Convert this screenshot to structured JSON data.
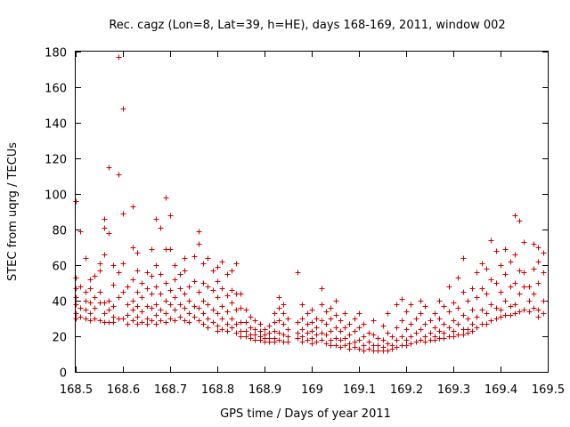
{
  "chart_data": {
    "type": "scatter",
    "title": "Rec. cagz (Lon=8, Lat=39, h=HE), days 168-169, 2011, window 002",
    "xlabel": "GPS time / Days of year 2011",
    "ylabel": "STEC from uqrg / TECUs",
    "xlim": [
      168.5,
      169.5
    ],
    "ylim": [
      0,
      180
    ],
    "xticks": [
      "168.5",
      "168.6",
      "168.7",
      "168.8",
      "168.9",
      "169",
      "169.1",
      "169.2",
      "169.3",
      "169.4",
      "169.5"
    ],
    "yticks": [
      "0",
      "20",
      "40",
      "60",
      "80",
      "100",
      "120",
      "140",
      "160",
      "180"
    ],
    "grid": false,
    "legend": "none",
    "marker": "+",
    "color": "#cc0000",
    "points": [
      [
        168.5,
        96
      ],
      [
        168.5,
        53
      ],
      [
        168.5,
        47
      ],
      [
        168.5,
        42
      ],
      [
        168.5,
        38
      ],
      [
        168.5,
        33
      ],
      [
        168.5,
        30
      ],
      [
        168.51,
        79
      ],
      [
        168.51,
        48
      ],
      [
        168.51,
        36
      ],
      [
        168.51,
        31
      ],
      [
        168.52,
        64
      ],
      [
        168.52,
        45
      ],
      [
        168.52,
        40
      ],
      [
        168.52,
        35
      ],
      [
        168.52,
        30
      ],
      [
        168.53,
        52
      ],
      [
        168.53,
        47
      ],
      [
        168.53,
        39
      ],
      [
        168.53,
        33
      ],
      [
        168.53,
        29
      ],
      [
        168.54,
        54
      ],
      [
        168.54,
        42
      ],
      [
        168.54,
        36
      ],
      [
        168.54,
        30
      ],
      [
        168.55,
        61
      ],
      [
        168.55,
        57
      ],
      [
        168.55,
        45
      ],
      [
        168.55,
        39
      ],
      [
        168.55,
        29
      ],
      [
        168.56,
        86
      ],
      [
        168.56,
        81
      ],
      [
        168.56,
        66
      ],
      [
        168.56,
        39
      ],
      [
        168.56,
        33
      ],
      [
        168.56,
        28
      ],
      [
        168.57,
        115
      ],
      [
        168.57,
        78
      ],
      [
        168.57,
        40
      ],
      [
        168.57,
        35
      ],
      [
        168.57,
        28
      ],
      [
        168.58,
        60
      ],
      [
        168.58,
        49
      ],
      [
        168.58,
        37
      ],
      [
        168.58,
        31
      ],
      [
        168.58,
        28
      ],
      [
        168.59,
        177
      ],
      [
        168.59,
        111
      ],
      [
        168.59,
        56
      ],
      [
        168.59,
        42
      ],
      [
        168.59,
        30
      ],
      [
        168.6,
        148
      ],
      [
        168.6,
        89
      ],
      [
        168.6,
        61
      ],
      [
        168.6,
        45
      ],
      [
        168.6,
        30
      ],
      [
        168.61,
        48
      ],
      [
        168.61,
        38
      ],
      [
        168.61,
        32
      ],
      [
        168.61,
        27
      ],
      [
        168.62,
        93
      ],
      [
        168.62,
        70
      ],
      [
        168.62,
        52
      ],
      [
        168.62,
        40
      ],
      [
        168.62,
        35
      ],
      [
        168.62,
        29
      ],
      [
        168.63,
        67
      ],
      [
        168.63,
        57
      ],
      [
        168.63,
        45
      ],
      [
        168.63,
        37
      ],
      [
        168.63,
        31
      ],
      [
        168.63,
        27
      ],
      [
        168.64,
        50
      ],
      [
        168.64,
        42
      ],
      [
        168.64,
        34
      ],
      [
        168.64,
        28
      ],
      [
        168.65,
        56
      ],
      [
        168.65,
        47
      ],
      [
        168.65,
        37
      ],
      [
        168.65,
        30
      ],
      [
        168.65,
        27
      ],
      [
        168.66,
        69
      ],
      [
        168.66,
        54
      ],
      [
        168.66,
        44
      ],
      [
        168.66,
        36
      ],
      [
        168.66,
        29
      ],
      [
        168.67,
        86
      ],
      [
        168.67,
        60
      ],
      [
        168.67,
        48
      ],
      [
        168.67,
        38
      ],
      [
        168.67,
        32
      ],
      [
        168.67,
        27
      ],
      [
        168.68,
        81
      ],
      [
        168.68,
        55
      ],
      [
        168.68,
        44
      ],
      [
        168.68,
        35
      ],
      [
        168.68,
        29
      ],
      [
        168.69,
        98
      ],
      [
        168.69,
        69
      ],
      [
        168.69,
        50
      ],
      [
        168.69,
        40
      ],
      [
        168.69,
        33
      ],
      [
        168.69,
        28
      ],
      [
        168.7,
        88
      ],
      [
        168.7,
        69
      ],
      [
        168.7,
        46
      ],
      [
        168.7,
        38
      ],
      [
        168.7,
        30
      ],
      [
        168.71,
        60
      ],
      [
        168.71,
        52
      ],
      [
        168.71,
        42
      ],
      [
        168.71,
        35
      ],
      [
        168.71,
        29
      ],
      [
        168.72,
        55
      ],
      [
        168.72,
        47
      ],
      [
        168.72,
        38
      ],
      [
        168.72,
        31
      ],
      [
        168.73,
        64
      ],
      [
        168.73,
        57
      ],
      [
        168.73,
        44
      ],
      [
        168.73,
        36
      ],
      [
        168.73,
        29
      ],
      [
        168.74,
        48
      ],
      [
        168.74,
        40
      ],
      [
        168.74,
        33
      ],
      [
        168.74,
        28
      ],
      [
        168.75,
        65
      ],
      [
        168.75,
        51
      ],
      [
        168.75,
        37
      ],
      [
        168.75,
        31
      ],
      [
        168.76,
        79
      ],
      [
        168.76,
        72
      ],
      [
        168.76,
        45
      ],
      [
        168.76,
        36
      ],
      [
        168.76,
        29
      ],
      [
        168.77,
        61
      ],
      [
        168.77,
        50
      ],
      [
        168.77,
        40
      ],
      [
        168.77,
        33
      ],
      [
        168.77,
        27
      ],
      [
        168.78,
        64
      ],
      [
        168.78,
        48
      ],
      [
        168.78,
        38
      ],
      [
        168.78,
        30
      ],
      [
        168.78,
        25
      ],
      [
        168.79,
        57
      ],
      [
        168.79,
        46
      ],
      [
        168.79,
        35
      ],
      [
        168.79,
        28
      ],
      [
        168.8,
        59
      ],
      [
        168.8,
        51
      ],
      [
        168.8,
        42
      ],
      [
        168.8,
        33
      ],
      [
        168.8,
        26
      ],
      [
        168.8,
        23
      ],
      [
        168.81,
        62
      ],
      [
        168.81,
        47
      ],
      [
        168.81,
        37
      ],
      [
        168.81,
        30
      ],
      [
        168.81,
        24
      ],
      [
        168.82,
        55
      ],
      [
        168.82,
        43
      ],
      [
        168.82,
        34
      ],
      [
        168.82,
        27
      ],
      [
        168.82,
        23
      ],
      [
        168.83,
        57
      ],
      [
        168.83,
        46
      ],
      [
        168.83,
        39
      ],
      [
        168.83,
        30
      ],
      [
        168.83,
        25
      ],
      [
        168.84,
        61
      ],
      [
        168.84,
        44
      ],
      [
        168.84,
        35
      ],
      [
        168.84,
        27
      ],
      [
        168.84,
        22
      ],
      [
        168.85,
        44
      ],
      [
        168.85,
        36
      ],
      [
        168.85,
        28
      ],
      [
        168.85,
        23
      ],
      [
        168.85,
        20
      ],
      [
        168.86,
        35
      ],
      [
        168.86,
        28
      ],
      [
        168.86,
        23
      ],
      [
        168.86,
        20
      ],
      [
        168.87,
        31
      ],
      [
        168.87,
        25
      ],
      [
        168.87,
        21
      ],
      [
        168.87,
        19
      ],
      [
        168.88,
        29
      ],
      [
        168.88,
        24
      ],
      [
        168.88,
        21
      ],
      [
        168.88,
        18
      ],
      [
        168.89,
        27
      ],
      [
        168.89,
        23
      ],
      [
        168.89,
        20
      ],
      [
        168.89,
        18
      ],
      [
        168.9,
        24
      ],
      [
        168.9,
        21
      ],
      [
        168.9,
        19
      ],
      [
        168.9,
        17
      ],
      [
        168.91,
        26
      ],
      [
        168.91,
        22
      ],
      [
        168.91,
        19
      ],
      [
        168.91,
        17
      ],
      [
        168.92,
        33
      ],
      [
        168.92,
        28
      ],
      [
        168.92,
        23
      ],
      [
        168.92,
        19
      ],
      [
        168.92,
        17
      ],
      [
        168.93,
        42
      ],
      [
        168.93,
        36
      ],
      [
        168.93,
        29
      ],
      [
        168.93,
        22
      ],
      [
        168.93,
        18
      ],
      [
        168.94,
        38
      ],
      [
        168.94,
        33
      ],
      [
        168.94,
        27
      ],
      [
        168.94,
        21
      ],
      [
        168.94,
        17
      ],
      [
        168.95,
        30
      ],
      [
        168.95,
        24
      ],
      [
        168.95,
        20
      ],
      [
        168.95,
        17
      ],
      [
        168.97,
        56
      ],
      [
        168.97,
        28
      ],
      [
        168.97,
        22
      ],
      [
        168.97,
        19
      ],
      [
        168.98,
        38
      ],
      [
        168.98,
        30
      ],
      [
        168.98,
        24
      ],
      [
        168.98,
        20
      ],
      [
        168.98,
        17
      ],
      [
        168.99,
        33
      ],
      [
        168.99,
        27
      ],
      [
        168.99,
        22
      ],
      [
        168.99,
        18
      ],
      [
        169.0,
        35
      ],
      [
        169.0,
        28
      ],
      [
        169.0,
        23
      ],
      [
        169.0,
        19
      ],
      [
        169.0,
        16
      ],
      [
        169.01,
        30
      ],
      [
        169.01,
        25
      ],
      [
        169.01,
        21
      ],
      [
        169.01,
        17
      ],
      [
        169.02,
        47
      ],
      [
        169.02,
        38
      ],
      [
        169.02,
        29
      ],
      [
        169.02,
        22
      ],
      [
        169.02,
        18
      ],
      [
        169.03,
        34
      ],
      [
        169.03,
        27
      ],
      [
        169.03,
        21
      ],
      [
        169.03,
        16
      ],
      [
        169.04,
        36
      ],
      [
        169.04,
        30
      ],
      [
        169.04,
        23
      ],
      [
        169.04,
        18
      ],
      [
        169.04,
        15
      ],
      [
        169.05,
        40
      ],
      [
        169.05,
        32
      ],
      [
        169.05,
        25
      ],
      [
        169.05,
        19
      ],
      [
        169.05,
        15
      ],
      [
        169.06,
        29
      ],
      [
        169.06,
        23
      ],
      [
        169.06,
        18
      ],
      [
        169.06,
        14
      ],
      [
        169.07,
        33
      ],
      [
        169.07,
        25
      ],
      [
        169.07,
        19
      ],
      [
        169.07,
        15
      ],
      [
        169.08,
        27
      ],
      [
        169.08,
        21
      ],
      [
        169.08,
        16
      ],
      [
        169.08,
        13
      ],
      [
        169.09,
        30
      ],
      [
        169.09,
        23
      ],
      [
        169.09,
        17
      ],
      [
        169.09,
        14
      ],
      [
        169.1,
        33
      ],
      [
        169.1,
        25
      ],
      [
        169.1,
        18
      ],
      [
        169.1,
        13
      ],
      [
        169.11,
        27
      ],
      [
        169.11,
        20
      ],
      [
        169.11,
        15
      ],
      [
        169.11,
        12
      ],
      [
        169.12,
        22
      ],
      [
        169.12,
        17
      ],
      [
        169.12,
        13
      ],
      [
        169.13,
        29
      ],
      [
        169.13,
        21
      ],
      [
        169.13,
        15
      ],
      [
        169.13,
        12
      ],
      [
        169.14,
        19
      ],
      [
        169.14,
        15
      ],
      [
        169.14,
        12
      ],
      [
        169.15,
        26
      ],
      [
        169.15,
        18
      ],
      [
        169.15,
        14
      ],
      [
        169.15,
        12
      ],
      [
        169.16,
        33
      ],
      [
        169.16,
        22
      ],
      [
        169.16,
        16
      ],
      [
        169.16,
        12
      ],
      [
        169.17,
        20
      ],
      [
        169.17,
        15
      ],
      [
        169.17,
        13
      ],
      [
        169.18,
        38
      ],
      [
        169.18,
        25
      ],
      [
        169.18,
        18
      ],
      [
        169.18,
        14
      ],
      [
        169.19,
        41
      ],
      [
        169.19,
        29
      ],
      [
        169.19,
        20
      ],
      [
        169.19,
        15
      ],
      [
        169.2,
        34
      ],
      [
        169.2,
        24
      ],
      [
        169.2,
        18
      ],
      [
        169.2,
        15
      ],
      [
        169.21,
        38
      ],
      [
        169.21,
        27
      ],
      [
        169.21,
        20
      ],
      [
        169.21,
        16
      ],
      [
        169.22,
        30
      ],
      [
        169.22,
        22
      ],
      [
        169.22,
        17
      ],
      [
        169.23,
        40
      ],
      [
        169.23,
        33
      ],
      [
        169.23,
        24
      ],
      [
        169.23,
        18
      ],
      [
        169.24,
        37
      ],
      [
        169.24,
        27
      ],
      [
        169.24,
        20
      ],
      [
        169.24,
        17
      ],
      [
        169.25,
        29
      ],
      [
        169.25,
        22
      ],
      [
        169.25,
        18
      ],
      [
        169.26,
        33
      ],
      [
        169.26,
        25
      ],
      [
        169.26,
        20
      ],
      [
        169.26,
        18
      ],
      [
        169.27,
        40
      ],
      [
        169.27,
        30
      ],
      [
        169.27,
        23
      ],
      [
        169.27,
        19
      ],
      [
        169.28,
        37
      ],
      [
        169.28,
        27
      ],
      [
        169.28,
        22
      ],
      [
        169.28,
        19
      ],
      [
        169.29,
        48
      ],
      [
        169.29,
        34
      ],
      [
        169.29,
        25
      ],
      [
        169.29,
        20
      ],
      [
        169.3,
        39
      ],
      [
        169.3,
        29
      ],
      [
        169.3,
        23
      ],
      [
        169.3,
        20
      ],
      [
        169.31,
        53
      ],
      [
        169.31,
        36
      ],
      [
        169.31,
        27
      ],
      [
        169.31,
        21
      ],
      [
        169.32,
        64
      ],
      [
        169.32,
        45
      ],
      [
        169.32,
        32
      ],
      [
        169.32,
        24
      ],
      [
        169.32,
        21
      ],
      [
        169.33,
        40
      ],
      [
        169.33,
        30
      ],
      [
        169.33,
        24
      ],
      [
        169.33,
        22
      ],
      [
        169.34,
        47
      ],
      [
        169.34,
        35
      ],
      [
        169.34,
        27
      ],
      [
        169.34,
        23
      ],
      [
        169.35,
        56
      ],
      [
        169.35,
        42
      ],
      [
        169.35,
        31
      ],
      [
        169.35,
        25
      ],
      [
        169.36,
        61
      ],
      [
        169.36,
        47
      ],
      [
        169.36,
        35
      ],
      [
        169.36,
        27
      ],
      [
        169.37,
        58
      ],
      [
        169.37,
        44
      ],
      [
        169.37,
        33
      ],
      [
        169.37,
        27
      ],
      [
        169.38,
        74
      ],
      [
        169.38,
        52
      ],
      [
        169.38,
        38
      ],
      [
        169.38,
        29
      ],
      [
        169.39,
        68
      ],
      [
        169.39,
        50
      ],
      [
        169.39,
        36
      ],
      [
        169.39,
        30
      ],
      [
        169.4,
        60
      ],
      [
        169.4,
        45
      ],
      [
        169.4,
        35
      ],
      [
        169.4,
        31
      ],
      [
        169.41,
        69
      ],
      [
        169.41,
        55
      ],
      [
        169.41,
        40
      ],
      [
        169.41,
        32
      ],
      [
        169.42,
        62
      ],
      [
        169.42,
        48
      ],
      [
        169.42,
        37
      ],
      [
        169.42,
        32
      ],
      [
        169.43,
        88
      ],
      [
        169.43,
        66
      ],
      [
        169.43,
        50
      ],
      [
        169.43,
        38
      ],
      [
        169.43,
        33
      ],
      [
        169.44,
        85
      ],
      [
        169.44,
        57
      ],
      [
        169.44,
        44
      ],
      [
        169.44,
        34
      ],
      [
        169.45,
        73
      ],
      [
        169.45,
        56
      ],
      [
        169.45,
        48
      ],
      [
        169.45,
        35
      ],
      [
        169.46,
        48
      ],
      [
        169.46,
        40
      ],
      [
        169.46,
        34
      ],
      [
        169.47,
        72
      ],
      [
        169.47,
        58
      ],
      [
        169.47,
        44
      ],
      [
        169.47,
        36
      ],
      [
        169.48,
        70
      ],
      [
        169.48,
        62
      ],
      [
        169.48,
        50
      ],
      [
        169.48,
        35
      ],
      [
        169.48,
        31
      ],
      [
        169.49,
        67
      ],
      [
        169.49,
        56
      ],
      [
        169.49,
        40
      ],
      [
        169.49,
        33
      ]
    ]
  }
}
